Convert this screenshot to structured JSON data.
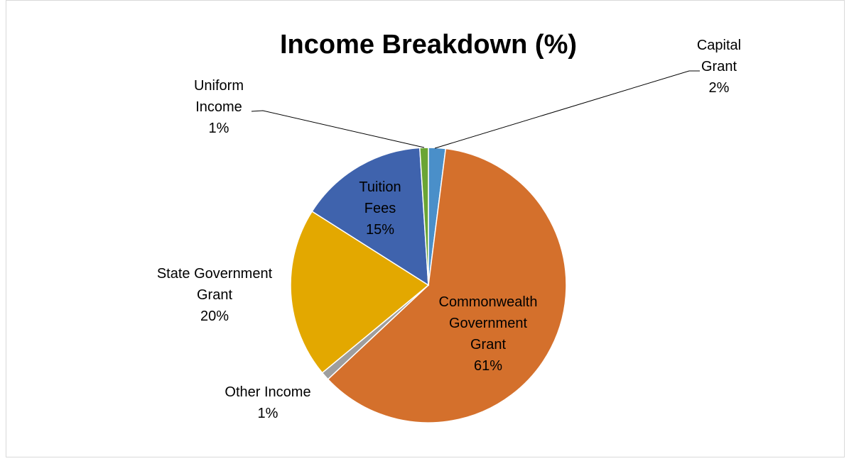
{
  "chart_data": {
    "type": "pie",
    "title": "Income Breakdown (%)",
    "start_angle_deg": 0,
    "slices": [
      {
        "label": [
          "Capital",
          "Grant",
          "2%"
        ],
        "value": 2,
        "color": "#4a8fc9"
      },
      {
        "label": [
          "Commonwealth",
          "Government",
          "Grant",
          "61%"
        ],
        "value": 61,
        "color": "#d4702c"
      },
      {
        "label": [
          "Other Income",
          "1%"
        ],
        "value": 1,
        "color": "#9e9e9e"
      },
      {
        "label": [
          "State Government",
          "Grant",
          "20%"
        ],
        "value": 20,
        "color": "#e3a800"
      },
      {
        "label": [
          "Tuition",
          "Fees",
          "15%"
        ],
        "value": 15,
        "color": "#3f63ad"
      },
      {
        "label": [
          "Uniform",
          "Income",
          "1%"
        ],
        "value": 1,
        "color": "#6aa534"
      }
    ]
  }
}
